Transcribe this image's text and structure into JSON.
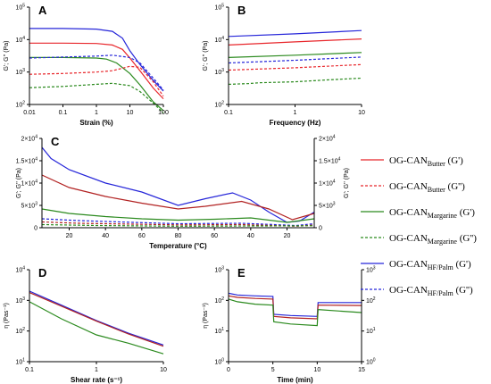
{
  "colors": {
    "butter": "#e8262b",
    "margarine": "#2b8a1e",
    "palm": "#2626d9",
    "c_butter": "#b22222"
  },
  "legend": [
    {
      "base": "OG-CAN",
      "sub": "Butter",
      "mod": " (G')",
      "color": "butter",
      "dash": false
    },
    {
      "base": "OG-CAN",
      "sub": "Butter",
      "mod": " (G'')",
      "color": "butter",
      "dash": true
    },
    {
      "base": "OG-CAN",
      "sub": "Margarine",
      "mod": " (G')",
      "color": "margarine",
      "dash": false
    },
    {
      "base": "OG-CAN",
      "sub": "Margarine",
      "mod": " (G'')",
      "color": "margarine",
      "dash": true
    },
    {
      "base": "OG-CAN",
      "sub": "HF/Palm",
      "mod": " (G')",
      "color": "palm",
      "dash": false
    },
    {
      "base": "OG-CAN",
      "sub": "HF/Palm",
      "mod": " (G'')",
      "color": "palm",
      "dash": true
    }
  ],
  "chart_data": [
    {
      "panel": "A",
      "type": "line",
      "xlabel": "Strain (%)",
      "ylabel": "G'; G'' (Pa)",
      "xscale": "log",
      "yscale": "log",
      "xlim": [
        0.01,
        100
      ],
      "ylim": [
        100,
        100000
      ],
      "xticks": [
        "0.01",
        "0.1",
        "1",
        "10",
        "100"
      ],
      "yticks": [
        "10^2",
        "10^3",
        "10^4",
        "10^5"
      ],
      "series": [
        {
          "color": "palm",
          "dash": false,
          "x": [
            0.01,
            0.1,
            1,
            3,
            6,
            10,
            20,
            50,
            100
          ],
          "y": [
            22000,
            22000,
            21000,
            18000,
            11000,
            4500,
            1700,
            550,
            260
          ]
        },
        {
          "color": "butter",
          "dash": false,
          "x": [
            0.01,
            0.1,
            1,
            3,
            6,
            10,
            20,
            50,
            100
          ],
          "y": [
            7800,
            7800,
            7600,
            6800,
            5000,
            2700,
            1100,
            320,
            150
          ]
        },
        {
          "color": "margarine",
          "dash": false,
          "x": [
            0.01,
            0.1,
            1,
            2,
            4,
            10,
            20,
            50,
            100
          ],
          "y": [
            2800,
            2800,
            2700,
            2500,
            1900,
            900,
            400,
            120,
            65
          ]
        },
        {
          "color": "palm",
          "dash": true,
          "x": [
            0.01,
            0.1,
            1,
            3,
            10,
            20,
            50,
            100
          ],
          "y": [
            2700,
            2900,
            3100,
            3300,
            2800,
            1900,
            650,
            280
          ]
        },
        {
          "color": "butter",
          "dash": true,
          "x": [
            0.01,
            0.1,
            1,
            3,
            10,
            20,
            50,
            100
          ],
          "y": [
            850,
            900,
            1000,
            1100,
            1500,
            1400,
            500,
            180
          ]
        },
        {
          "color": "margarine",
          "dash": true,
          "x": [
            0.01,
            0.1,
            1,
            3,
            10,
            20,
            50,
            100
          ],
          "y": [
            330,
            360,
            420,
            450,
            380,
            250,
            110,
            55
          ]
        }
      ]
    },
    {
      "panel": "B",
      "type": "line",
      "xlabel": "Frequency (Hz)",
      "ylabel": "G'; G'' (Pa)",
      "xscale": "log",
      "yscale": "log",
      "xlim": [
        0.1,
        10
      ],
      "ylim": [
        100,
        100000
      ],
      "xticks": [
        "0.1",
        "1",
        "10"
      ],
      "yticks": [
        "10^2",
        "10^3",
        "10^4",
        "10^5"
      ],
      "series": [
        {
          "color": "palm",
          "dash": false,
          "x": [
            0.1,
            1,
            10
          ],
          "y": [
            12500,
            15000,
            19000
          ]
        },
        {
          "color": "butter",
          "dash": false,
          "x": [
            0.1,
            1,
            10
          ],
          "y": [
            6800,
            8500,
            10500
          ]
        },
        {
          "color": "margarine",
          "dash": false,
          "x": [
            0.1,
            1,
            10
          ],
          "y": [
            2800,
            3300,
            4000
          ]
        },
        {
          "color": "palm",
          "dash": true,
          "x": [
            0.1,
            1,
            10
          ],
          "y": [
            1900,
            2300,
            2900
          ]
        },
        {
          "color": "butter",
          "dash": true,
          "x": [
            0.1,
            1,
            10
          ],
          "y": [
            1150,
            1350,
            1700
          ]
        },
        {
          "color": "margarine",
          "dash": true,
          "x": [
            0.1,
            0.2,
            0.3,
            0.5,
            1,
            3,
            10
          ],
          "y": [
            420,
            440,
            470,
            480,
            500,
            570,
            650
          ]
        }
      ]
    },
    {
      "panel": "C",
      "type": "line",
      "xlabel": "Temperature (°C)",
      "ylabel": "G'; G'' (Pa)",
      "ylabel_right": "G'; G'' (Pa)",
      "xscale": "linear",
      "yscale": "linear",
      "ylim": [
        0,
        20000
      ],
      "xticks": [
        "20",
        "40",
        "60",
        "80",
        "60",
        "40",
        "20"
      ],
      "yticks": [
        "0",
        "5×10^3",
        "1×10^4",
        "1.5×10^4",
        "2×10^4"
      ],
      "yticks_right": [
        "0",
        "5×10^3",
        "1×10^4",
        "1.5×10^4",
        "2×10^4"
      ],
      "note": "x is sweep position in degrees traversed: heating 5→80 °C (0–75), cooling 80→5 °C (75–150)",
      "series": [
        {
          "color": "palm",
          "dash": false,
          "x": [
            0,
            5,
            15,
            35,
            55,
            75,
            90,
            105,
            115,
            125,
            135,
            142,
            150
          ],
          "y": [
            18000,
            15500,
            13000,
            10000,
            8000,
            5000,
            6500,
            7800,
            6200,
            3500,
            1200,
            1500,
            3500
          ]
        },
        {
          "color": "c_butter",
          "dash": false,
          "x": [
            0,
            15,
            35,
            55,
            75,
            90,
            110,
            125,
            138,
            150
          ],
          "y": [
            11800,
            9000,
            7000,
            5500,
            4200,
            4800,
            5900,
            4200,
            1800,
            3200
          ]
        },
        {
          "color": "margarine",
          "dash": false,
          "x": [
            0,
            15,
            35,
            55,
            75,
            95,
            115,
            135,
            150
          ],
          "y": [
            4200,
            3200,
            2500,
            2000,
            1700,
            1900,
            2200,
            1200,
            2000
          ]
        },
        {
          "color": "palm",
          "dash": true,
          "x": [
            0,
            20,
            50,
            75,
            110,
            140,
            150
          ],
          "y": [
            2000,
            1600,
            1200,
            900,
            1000,
            500,
            900
          ]
        },
        {
          "color": "c_butter",
          "dash": true,
          "x": [
            0,
            20,
            50,
            75,
            110,
            140,
            150
          ],
          "y": [
            1300,
            1000,
            800,
            650,
            700,
            350,
            600
          ]
        },
        {
          "color": "margarine",
          "dash": true,
          "x": [
            0,
            30,
            75,
            120,
            150
          ],
          "y": [
            700,
            500,
            350,
            400,
            450
          ]
        }
      ]
    },
    {
      "panel": "D",
      "type": "line",
      "xlabel": "Shear rate (s⁻¹)",
      "ylabel": "η (Pas⁻¹)",
      "xscale": "log",
      "yscale": "log",
      "xlim": [
        0.1,
        10
      ],
      "ylim": [
        10,
        10000
      ],
      "xticks": [
        "0.1",
        "1",
        "10"
      ],
      "yticks": [
        "10^1",
        "10^2",
        "10^3",
        "10^4"
      ],
      "series": [
        {
          "color": "palm",
          "dash": false,
          "x": [
            0.1,
            0.3,
            1,
            3,
            10
          ],
          "y": [
            2000,
            700,
            220,
            85,
            35
          ]
        },
        {
          "color": "c_butter",
          "dash": false,
          "x": [
            0.1,
            0.3,
            1,
            3,
            10
          ],
          "y": [
            1800,
            650,
            210,
            80,
            32
          ]
        },
        {
          "color": "margarine",
          "dash": false,
          "x": [
            0.1,
            0.3,
            1,
            3,
            10
          ],
          "y": [
            900,
            250,
            75,
            40,
            18
          ]
        }
      ]
    },
    {
      "panel": "E",
      "type": "line",
      "xlabel": "Time (min)",
      "ylabel": "η (Pas⁻¹)",
      "xscale": "linear",
      "yscale": "log",
      "xlim": [
        0,
        15
      ],
      "ylim": [
        1,
        1000
      ],
      "xticks": [
        "0",
        "5",
        "10",
        "15"
      ],
      "yticks": [
        "10^0",
        "10^1",
        "10^2",
        "10^3"
      ],
      "yticks_right": [
        "10^0",
        "10^1",
        "10^2",
        "10^3"
      ],
      "series": [
        {
          "color": "palm",
          "dash": false,
          "x": [
            0,
            1,
            3,
            5,
            5.1,
            7,
            10,
            10.1,
            15
          ],
          "y": [
            170,
            150,
            140,
            135,
            35,
            32,
            30,
            85,
            85
          ]
        },
        {
          "color": "c_butter",
          "dash": false,
          "x": [
            0,
            1,
            3,
            5,
            5.1,
            7,
            10,
            10.1,
            15
          ],
          "y": [
            140,
            125,
            115,
            110,
            30,
            27,
            25,
            70,
            68
          ]
        },
        {
          "color": "margarine",
          "dash": false,
          "x": [
            0,
            1,
            3,
            5,
            5.1,
            7,
            10,
            10.1,
            15
          ],
          "y": [
            110,
            90,
            75,
            70,
            20,
            17,
            15,
            50,
            40
          ]
        }
      ]
    }
  ]
}
